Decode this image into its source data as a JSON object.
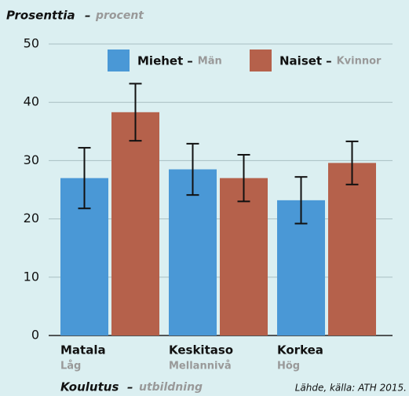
{
  "chart_data": {
    "type": "bar",
    "ylabel": "Prosenttia",
    "ylabel_sv": "procent",
    "separator": "–",
    "xlabel": "Koulutus",
    "xlabel_sv": "utbildning",
    "source": "Lähde, källa: ATH 2015.",
    "categories": [
      "Matala",
      "Keskitaso",
      "Korkea"
    ],
    "categories_sv": [
      "Låg",
      "Mellannivå",
      "Hög"
    ],
    "series": [
      {
        "name": "Miehet",
        "name_sv": "Män",
        "color": "#4a98d6",
        "values": [
          27,
          28.5,
          23.2
        ],
        "errors": [
          5.2,
          4.4,
          4
        ]
      },
      {
        "name": "Naiset",
        "name_sv": "Kvinnor",
        "color": "#b5614b",
        "values": [
          38.3,
          27,
          29.6
        ],
        "errors": [
          4.9,
          4,
          3.7
        ]
      }
    ],
    "ylim": [
      0,
      50
    ],
    "yticks": [
      0,
      10,
      20,
      30,
      40,
      50
    ],
    "grid": true,
    "legend": "top"
  }
}
